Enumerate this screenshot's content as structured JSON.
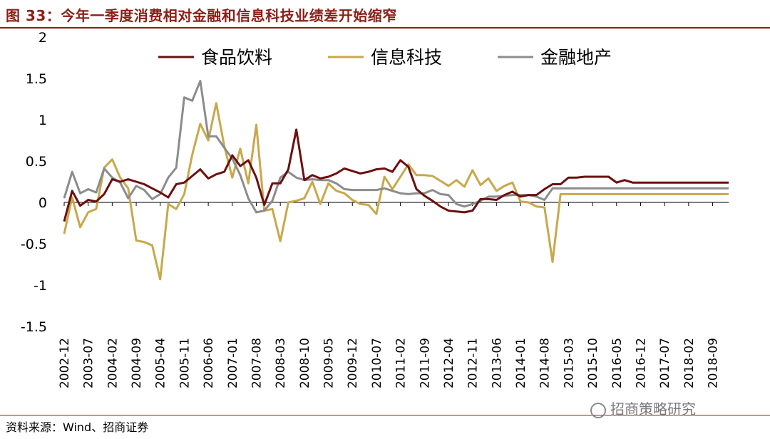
{
  "figure": {
    "title": "图 33：今年一季度消费相对金融和信息科技业绩差开始缩窄",
    "source": "资料来源：Wind、招商证券",
    "watermark": "招商策略研究"
  },
  "chart_data": {
    "type": "line",
    "title": "",
    "xlabel": "",
    "ylabel": "",
    "ylim": [
      -1.5,
      2
    ],
    "yticks": [
      "-1.5",
      "-1",
      "-0.5",
      "0",
      "0.5",
      "1",
      "1.5",
      "2"
    ],
    "ytick_values": [
      -1.5,
      -1,
      -0.5,
      0,
      0.5,
      1,
      1.5,
      2
    ],
    "grid": false,
    "legend": "top",
    "x": [
      "2002-12",
      "2003-03",
      "2003-05",
      "2003-07",
      "2003-09",
      "2003-12",
      "2004-02",
      "2004-05",
      "2004-07",
      "2004-09",
      "2004-12",
      "2005-02",
      "2005-04",
      "2005-06",
      "2005-09",
      "2005-11",
      "2006-02",
      "2006-04",
      "2006-06",
      "2006-09",
      "2006-11",
      "2007-01",
      "2007-04",
      "2007-06",
      "2007-08",
      "2007-11",
      "2008-01",
      "2008-03",
      "2008-06",
      "2008-08",
      "2008-10",
      "2009-01",
      "2009-03",
      "2009-05",
      "2009-08",
      "2009-10",
      "2009-12",
      "2010-03",
      "2010-05",
      "2010-07",
      "2010-10",
      "2010-12",
      "2011-02",
      "2011-05",
      "2011-07",
      "2011-09",
      "2011-12",
      "2012-02",
      "2012-04",
      "2012-07",
      "2012-09",
      "2012-11",
      "2013-02",
      "2013-04",
      "2013-06",
      "2013-09",
      "2013-11",
      "2014-01",
      "2014-04",
      "2014-06",
      "2014-08",
      "2014-11",
      "2015-01",
      "2015-03",
      "2015-06",
      "2015-08",
      "2015-10",
      "2016-01",
      "2016-03",
      "2016-05",
      "2016-08",
      "2016-10",
      "2016-12",
      "2017-03",
      "2017-05",
      "2017-07",
      "2017-10",
      "2017-12",
      "2018-02",
      "2018-05",
      "2018-07",
      "2018-09",
      "2018-12",
      "2019-03"
    ],
    "xtick_labels": [
      "2002-12",
      "2003-07",
      "2004-02",
      "2004-09",
      "2005-04",
      "2005-11",
      "2006-06",
      "2007-01",
      "2007-08",
      "2008-03",
      "2008-10",
      "2009-05",
      "2009-12",
      "2010-07",
      "2011-02",
      "2011-09",
      "2012-04",
      "2012-11",
      "2013-06",
      "2014-01",
      "2014-08",
      "2015-03",
      "2015-10",
      "2016-05",
      "2016-12",
      "2017-07",
      "2018-02",
      "2018-09"
    ],
    "series": [
      {
        "name": "食品饮料",
        "color": "#6b0f0f",
        "values": [
          -0.23,
          0.14,
          -0.04,
          0.03,
          0.01,
          0.1,
          0.28,
          0.25,
          0.28,
          0.25,
          0.22,
          0.17,
          0.12,
          0.06,
          0.22,
          0.24,
          0.32,
          0.4,
          0.29,
          0.34,
          0.37,
          0.57,
          0.44,
          0.51,
          0.3,
          -0.03,
          0.23,
          0.23,
          0.4,
          0.88,
          0.27,
          0.33,
          0.29,
          0.31,
          0.35,
          0.41,
          0.38,
          0.35,
          0.37,
          0.4,
          0.41,
          0.37,
          0.51,
          0.43,
          0.16,
          0.08,
          0.02,
          -0.05,
          -0.1,
          -0.11,
          -0.12,
          -0.1,
          0.04,
          0.04,
          0.03,
          0.09,
          0.13,
          0.07,
          0.09,
          0.09,
          0.16,
          0.22,
          0.22,
          0.3,
          0.3,
          0.31,
          0.31,
          0.31,
          0.31,
          0.24,
          0.27,
          0.24,
          0.24,
          0.24,
          0.24,
          0.24,
          0.24,
          0.24,
          0.24,
          0.24,
          0.24,
          0.24,
          0.24,
          0.24
        ]
      },
      {
        "name": "信息科技",
        "color": "#c8a84b",
        "values": [
          -0.38,
          0.06,
          -0.3,
          -0.12,
          -0.08,
          0.42,
          0.52,
          0.3,
          0.17,
          -0.46,
          -0.48,
          -0.52,
          -0.93,
          -0.02,
          -0.08,
          0.1,
          0.58,
          0.95,
          0.75,
          1.2,
          0.68,
          0.3,
          0.65,
          0.23,
          0.94,
          -0.1,
          -0.08,
          -0.47,
          0.0,
          0.02,
          0.05,
          0.25,
          -0.02,
          0.23,
          0.14,
          0.11,
          0.03,
          -0.02,
          -0.03,
          -0.14,
          0.31,
          0.16,
          0.31,
          0.46,
          0.33,
          0.33,
          0.32,
          0.26,
          0.2,
          0.27,
          0.19,
          0.39,
          0.21,
          0.29,
          0.14,
          0.2,
          0.24,
          0.01,
          0.0,
          -0.05,
          -0.06,
          -0.72,
          0.1,
          0.1,
          0.1,
          0.1,
          0.1,
          0.1,
          0.1,
          0.1,
          0.1,
          0.1,
          0.1,
          0.1,
          0.1,
          0.1,
          0.1,
          0.1,
          0.1,
          0.1,
          0.1,
          0.1,
          0.1,
          0.1
        ]
      },
      {
        "name": "金融地产",
        "color": "#8c8c8c",
        "values": [
          0.05,
          0.37,
          0.11,
          0.16,
          0.12,
          0.41,
          0.3,
          0.24,
          0.05,
          0.2,
          0.15,
          0.04,
          0.1,
          0.3,
          0.42,
          1.27,
          1.23,
          1.47,
          0.8,
          0.8,
          0.66,
          0.53,
          0.33,
          0.05,
          -0.12,
          -0.1,
          0.02,
          0.3,
          0.37,
          0.3,
          0.27,
          0.28,
          0.27,
          0.27,
          0.23,
          0.16,
          0.15,
          0.15,
          0.15,
          0.15,
          0.17,
          0.14,
          0.11,
          0.1,
          0.11,
          0.11,
          0.15,
          0.1,
          0.09,
          -0.02,
          -0.05,
          -0.02,
          0.02,
          0.07,
          0.07,
          0.08,
          0.09,
          0.09,
          0.09,
          0.07,
          0.03,
          0.17,
          0.17,
          0.17,
          0.17,
          0.17,
          0.17,
          0.17,
          0.17,
          0.17,
          0.17,
          0.17,
          0.17,
          0.17,
          0.17,
          0.17,
          0.17,
          0.17,
          0.17,
          0.17,
          0.17,
          0.17,
          0.17,
          0.17
        ]
      }
    ]
  }
}
